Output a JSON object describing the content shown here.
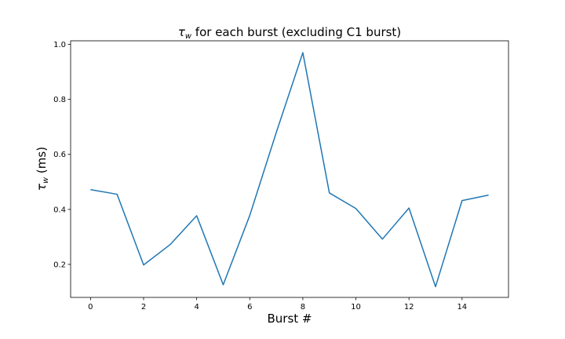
{
  "chart_data": {
    "type": "line",
    "title": {
      "symbol": "τ",
      "subscript": "w",
      "text": " for each burst (excluding C1 burst)"
    },
    "xlabel": "Burst #",
    "ylabel": {
      "symbol": "τ",
      "subscript": "w",
      "text": " (ms)"
    },
    "xlim": [
      -0.75,
      15.75
    ],
    "ylim": [
      0.08,
      1.013
    ],
    "xticks": [
      0,
      2,
      4,
      6,
      8,
      10,
      12,
      14
    ],
    "yticks": [
      0.2,
      0.4,
      0.6,
      0.8,
      1.0
    ],
    "ytick_labels": [
      "0.2",
      "0.4",
      "0.6",
      "0.8",
      "1.0"
    ],
    "grid": false,
    "series": [
      {
        "color": "#1f77b4",
        "x": [
          0,
          1,
          2,
          3,
          4,
          5,
          6,
          7,
          8,
          9,
          10,
          11,
          12,
          13,
          14,
          15
        ],
        "y": [
          0.472,
          0.455,
          0.198,
          0.272,
          0.377,
          0.126,
          0.378,
          0.68,
          0.97,
          0.46,
          0.403,
          0.292,
          0.405,
          0.119,
          0.432,
          0.452
        ]
      }
    ]
  }
}
